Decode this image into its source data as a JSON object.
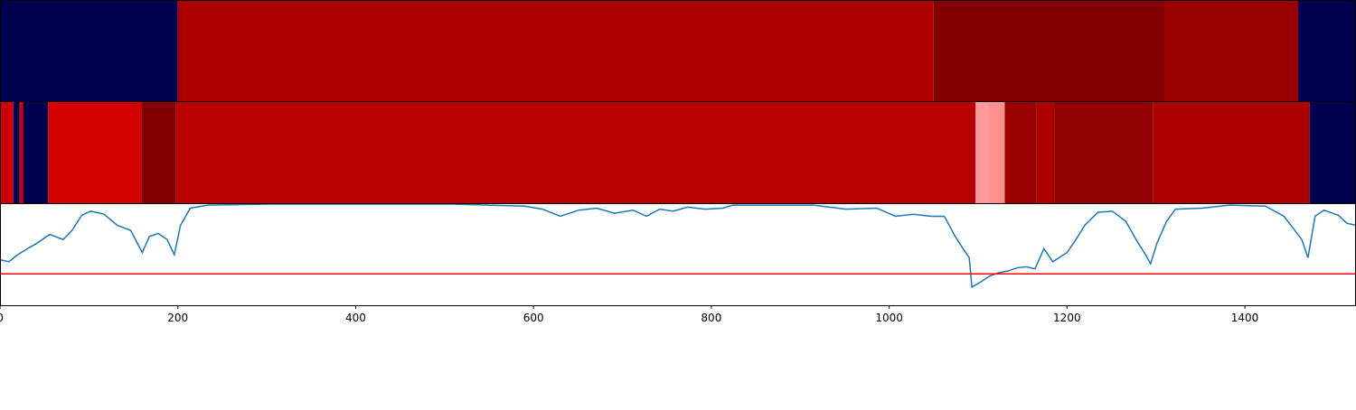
{
  "chart_data": [
    {
      "type": "band",
      "xlim": [
        0,
        1525
      ],
      "bins": [
        0,
        200,
        1050,
        1310,
        1460,
        1525
      ],
      "colors": [
        "#000050",
        "#aa0000",
        "#800000",
        "#990000",
        "#000050"
      ]
    },
    {
      "type": "band",
      "xlim": [
        0,
        1525
      ],
      "bins": [
        0,
        15,
        22,
        26,
        54,
        159,
        198,
        1097,
        1111,
        1130,
        1166,
        1186,
        1297,
        1473,
        1525
      ],
      "colors": [
        "#cc0000",
        "#000050",
        "#cc0000",
        "#000050",
        "#d40000",
        "#800000",
        "#bb0000",
        "#ff9999",
        "#ff9090",
        "#990000",
        "#aa0000",
        "#900000",
        "#aa0000",
        "#000050"
      ]
    },
    {
      "type": "line",
      "xlim": [
        0,
        1525
      ],
      "ylim": [
        0,
        1
      ],
      "xticks": [
        0,
        200,
        400,
        600,
        800,
        1000,
        1200,
        1400
      ],
      "x": [
        0,
        10,
        20,
        31,
        41,
        56,
        71,
        81,
        92,
        102,
        117,
        132,
        147,
        160,
        168,
        178,
        188,
        196,
        203,
        214,
        234,
        305,
        508,
        590,
        610,
        630,
        651,
        671,
        691,
        712,
        727,
        742,
        757,
        773,
        793,
        813,
        824,
        915,
        951,
        986,
        1007,
        1027,
        1047,
        1062,
        1073,
        1083,
        1090,
        1093,
        1103,
        1113,
        1123,
        1134,
        1144,
        1154,
        1164,
        1174,
        1184,
        1200,
        1210,
        1220,
        1235,
        1251,
        1266,
        1279,
        1289,
        1294,
        1301,
        1312,
        1322,
        1352,
        1383,
        1423,
        1444,
        1464,
        1471,
        1479,
        1489,
        1505,
        1515,
        1525
      ],
      "series": [
        {
          "color": "#1f77b4",
          "values": [
            0.45,
            0.43,
            0.5,
            0.56,
            0.61,
            0.7,
            0.65,
            0.74,
            0.89,
            0.93,
            0.9,
            0.79,
            0.74,
            0.52,
            0.68,
            0.71,
            0.65,
            0.5,
            0.79,
            0.96,
            0.99,
            1.0,
            1.0,
            0.98,
            0.95,
            0.88,
            0.94,
            0.96,
            0.91,
            0.94,
            0.88,
            0.95,
            0.93,
            0.97,
            0.95,
            0.96,
            0.99,
            0.99,
            0.95,
            0.96,
            0.88,
            0.9,
            0.88,
            0.88,
            0.7,
            0.56,
            0.47,
            0.18,
            0.23,
            0.29,
            0.32,
            0.34,
            0.37,
            0.38,
            0.36,
            0.56,
            0.43,
            0.52,
            0.65,
            0.79,
            0.92,
            0.93,
            0.83,
            0.63,
            0.49,
            0.41,
            0.61,
            0.83,
            0.95,
            0.96,
            0.99,
            0.98,
            0.88,
            0.65,
            0.47,
            0.88,
            0.94,
            0.89,
            0.81,
            0.79
          ]
        }
      ],
      "hline": {
        "value": 0.31,
        "color": "#ff0000"
      }
    }
  ]
}
